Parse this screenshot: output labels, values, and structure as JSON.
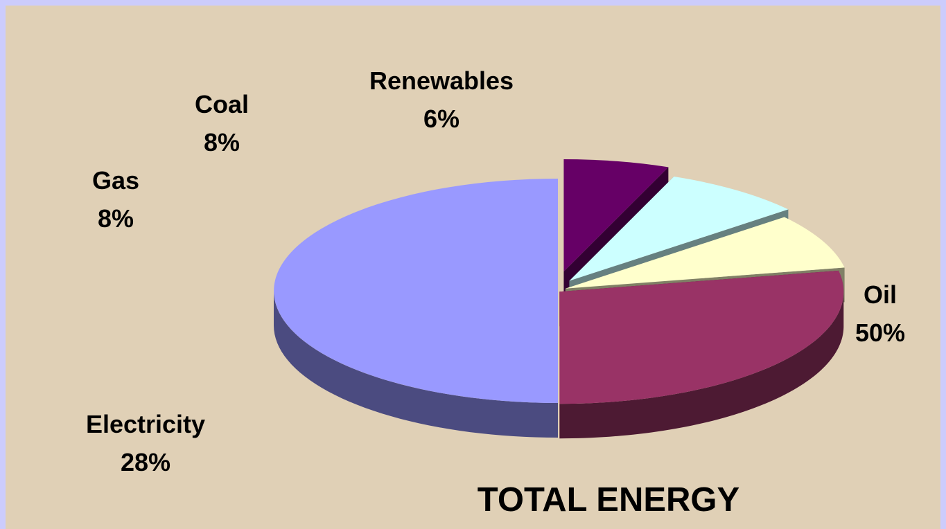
{
  "chart_data": {
    "type": "pie",
    "title": "TOTAL ENERGY",
    "three_d": true,
    "exploded": true,
    "slices": [
      {
        "label": "Oil",
        "value": 50,
        "value_label": "50%",
        "color": "#9999ff",
        "side_color": "#4b4b80"
      },
      {
        "label": "Electricity",
        "value": 28,
        "value_label": "28%",
        "color": "#993366",
        "side_color": "#4d1a33"
      },
      {
        "label": "Gas",
        "value": 8,
        "value_label": "8%",
        "color": "#ffffcc",
        "side_color": "#808066"
      },
      {
        "label": "Coal",
        "value": 8,
        "value_label": "8%",
        "color": "#ccffff",
        "side_color": "#668080"
      },
      {
        "label": "Renewables",
        "value": 6,
        "value_label": "6%",
        "color": "#660066",
        "side_color": "#330033"
      }
    ]
  }
}
